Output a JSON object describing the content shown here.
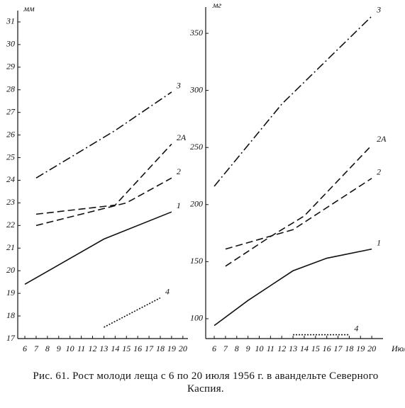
{
  "chart_data": [
    {
      "type": "line",
      "ylabel": "мм",
      "xlim": [
        5.37,
        20.45
      ],
      "ylim": [
        17,
        31.5
      ],
      "xticks": [
        6,
        7,
        8,
        9,
        10,
        11,
        12,
        13,
        14,
        15,
        16,
        17,
        18,
        19,
        20
      ],
      "yticks": [
        17,
        18,
        19,
        20,
        21,
        22,
        23,
        24,
        25,
        26,
        27,
        28,
        29,
        30,
        31
      ],
      "series": [
        {
          "name": "3",
          "color": "#111",
          "dash": "dash-dot",
          "x": [
            7,
            14,
            19
          ],
          "values": [
            24.1,
            26.2,
            27.9
          ]
        },
        {
          "name": "2А",
          "color": "#111",
          "dash": "dash",
          "x": [
            7,
            14,
            19
          ],
          "values": [
            22.5,
            22.9,
            25.6
          ]
        },
        {
          "name": "2",
          "color": "#111",
          "dash": "dash",
          "x": [
            7,
            15,
            19
          ],
          "values": [
            22.0,
            23.0,
            24.1
          ]
        },
        {
          "name": "1",
          "color": "#111",
          "dash": "solid",
          "x": [
            6,
            13,
            19
          ],
          "values": [
            19.4,
            21.4,
            22.6
          ]
        },
        {
          "name": "4",
          "color": "#111",
          "dash": "dot",
          "x": [
            13,
            18
          ],
          "values": [
            17.5,
            18.8
          ]
        }
      ]
    },
    {
      "type": "line",
      "ylabel": "мг",
      "xlabel": "Июль",
      "xlim": [
        5.24,
        21.0
      ],
      "ylim": [
        82.6,
        373
      ],
      "xticks": [
        6,
        7,
        8,
        9,
        10,
        11,
        12,
        13,
        14,
        15,
        16,
        17,
        18,
        19,
        20
      ],
      "yticks": [
        100,
        150,
        200,
        250,
        300,
        350
      ],
      "series": [
        {
          "name": "3",
          "color": "#111",
          "dash": "dash-dot",
          "x": [
            6,
            12,
            20
          ],
          "values": [
            216,
            288,
            365
          ]
        },
        {
          "name": "2А",
          "color": "#111",
          "dash": "dash",
          "x": [
            7,
            11,
            14,
            20
          ],
          "values": [
            146,
            172,
            190,
            252
          ]
        },
        {
          "name": "2",
          "color": "#111",
          "dash": "dash",
          "x": [
            7,
            13,
            20
          ],
          "values": [
            161,
            178,
            223
          ]
        },
        {
          "name": "1",
          "color": "#111",
          "dash": "solid",
          "x": [
            6,
            9,
            13,
            16,
            20
          ],
          "values": [
            94,
            116,
            142,
            153,
            161
          ]
        },
        {
          "name": "4",
          "color": "#111",
          "dash": "dot",
          "x": [
            13,
            18
          ],
          "values": [
            86,
            86
          ]
        }
      ]
    }
  ],
  "caption": "Рис. 61. Рост молоди леща с 6 по 20 июля 1956 г. в авандельте Северного Каспия."
}
